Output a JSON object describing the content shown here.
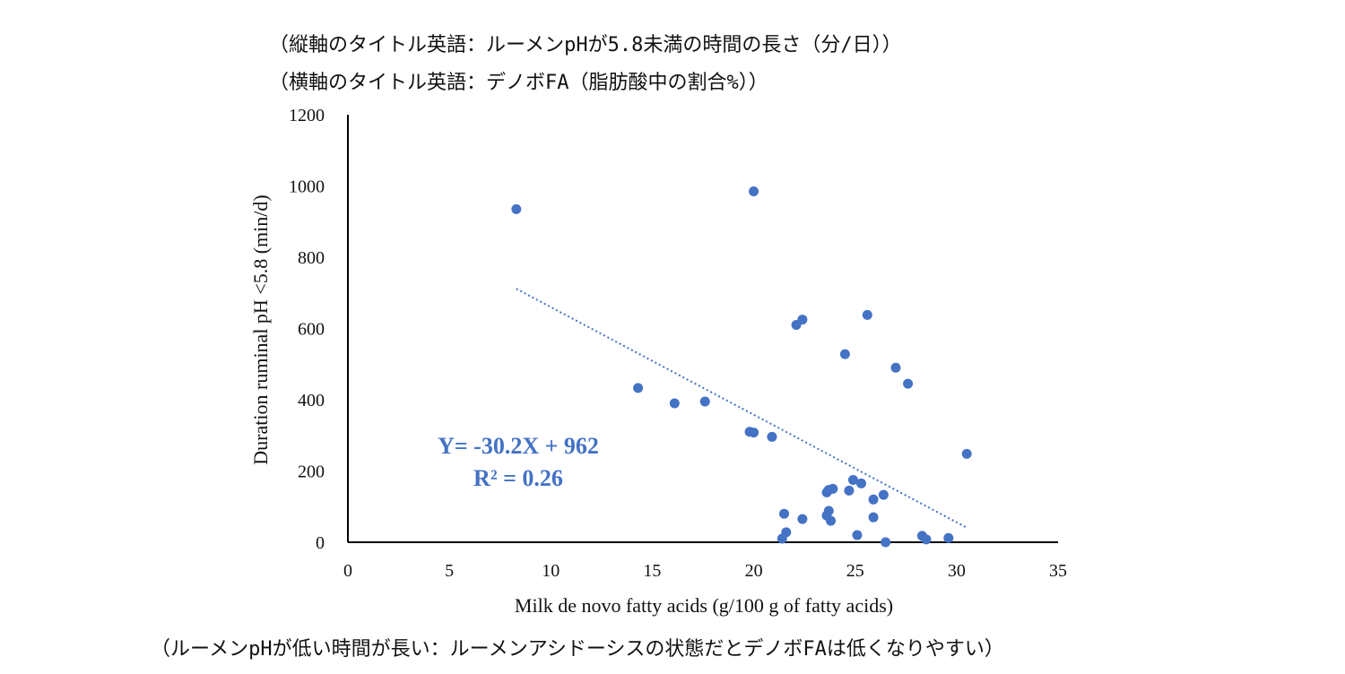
{
  "notes": {
    "top_line1": "（縦軸のタイトル英語：ルーメンpHが5.8未満の時間の長さ（分/日））",
    "top_line2": "（横軸のタイトル英語：デノボFA（脂肪酸中の割合%））",
    "bottom": "（ルーメンpHが低い時間が長い：ルーメンアシドーシスの状態だとデノボFAは低くなりやすい）"
  },
  "chart_data": {
    "type": "scatter",
    "xlabel": "Milk de novo fatty acids (g/100 g of fatty acids)",
    "ylabel": "Duration ruminal pH <5.8 (min/d)",
    "xlim": [
      0,
      35
    ],
    "ylim": [
      0,
      1200
    ],
    "x_ticks": [
      "0",
      "5",
      "10",
      "15",
      "20",
      "25",
      "30",
      "35"
    ],
    "y_ticks": [
      "0",
      "200",
      "400",
      "600",
      "800",
      "1000",
      "1200"
    ],
    "marker_color": "#4472C4",
    "trendline": {
      "style": "dotted",
      "slope": -30.2,
      "intercept": 962,
      "x_range": [
        8.3,
        30.5
      ],
      "equation": "Y= -30.2X + 962",
      "r_squared": "R² = 0.26"
    },
    "points": [
      {
        "x": 8.3,
        "y": 935
      },
      {
        "x": 20.0,
        "y": 985
      },
      {
        "x": 14.3,
        "y": 433
      },
      {
        "x": 16.1,
        "y": 390
      },
      {
        "x": 17.6,
        "y": 395
      },
      {
        "x": 19.8,
        "y": 310
      },
      {
        "x": 20.0,
        "y": 308
      },
      {
        "x": 20.9,
        "y": 296
      },
      {
        "x": 22.1,
        "y": 610
      },
      {
        "x": 22.4,
        "y": 625
      },
      {
        "x": 24.5,
        "y": 528
      },
      {
        "x": 25.6,
        "y": 638
      },
      {
        "x": 27.0,
        "y": 490
      },
      {
        "x": 27.6,
        "y": 445
      },
      {
        "x": 30.5,
        "y": 248
      },
      {
        "x": 23.6,
        "y": 140
      },
      {
        "x": 23.7,
        "y": 147
      },
      {
        "x": 23.9,
        "y": 150
      },
      {
        "x": 24.7,
        "y": 145
      },
      {
        "x": 24.9,
        "y": 175
      },
      {
        "x": 25.3,
        "y": 165
      },
      {
        "x": 25.9,
        "y": 120
      },
      {
        "x": 26.4,
        "y": 133
      },
      {
        "x": 21.5,
        "y": 80
      },
      {
        "x": 22.4,
        "y": 65
      },
      {
        "x": 23.6,
        "y": 75
      },
      {
        "x": 23.7,
        "y": 88
      },
      {
        "x": 23.8,
        "y": 60
      },
      {
        "x": 25.9,
        "y": 70
      },
      {
        "x": 21.4,
        "y": 10
      },
      {
        "x": 21.6,
        "y": 28
      },
      {
        "x": 25.1,
        "y": 20
      },
      {
        "x": 26.5,
        "y": 0
      },
      {
        "x": 28.3,
        "y": 18
      },
      {
        "x": 28.5,
        "y": 8
      },
      {
        "x": 29.6,
        "y": 12
      }
    ]
  }
}
